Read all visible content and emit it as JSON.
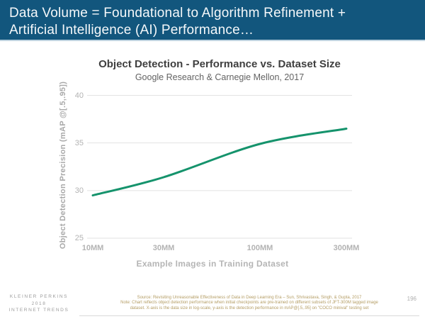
{
  "slide": {
    "title": "Data Volume = Foundational to Algorithm Refinement +\nArtificial Intelligence (AI) Performance…",
    "page_number": "196",
    "brand": {
      "line1": "KLEINER PERKINS",
      "line2": "2018",
      "line3": "INTERNET TRENDS"
    },
    "footnote": "Source: Revisiting Unreasonable Effectiveness of Data in Deep Learning Era – Sun, Shrivastava, Singh, & Gupta, 2017\nNote: Chart reflects object detection performance when initial checkpoints are pre-trained on different subsets of JFT-300M tagged image\ndataset. X-axis is the data size in log-scale, y-axis is the detection performance in mAP@[.5,.95] on \"COCO minival\" testing set"
  },
  "chart_data": {
    "type": "line",
    "title": "Object Detection - Performance vs. Dataset Size",
    "subtitle": "Google Research & Carnegie Mellon, 2017",
    "xlabel": "Example Images in Training Dataset",
    "ylabel": "Object Detection Precision (mAP @[.5,.95])",
    "x_scale": "log",
    "x": [
      10,
      30,
      100,
      300
    ],
    "x_tick_labels": [
      "10MM",
      "30MM",
      "100MM",
      "300MM"
    ],
    "y_ticks": [
      25,
      30,
      35,
      40
    ],
    "ylim": [
      25,
      40
    ],
    "grid": true,
    "legend": "none",
    "series": [
      {
        "name": "Object detection precision (mAP)",
        "values": [
          29.5,
          31.4,
          34.9,
          36.5
        ]
      }
    ],
    "colors": {
      "line": "#15936c",
      "gridline": "#e2e2e2",
      "header_bg": "#12567d"
    }
  }
}
